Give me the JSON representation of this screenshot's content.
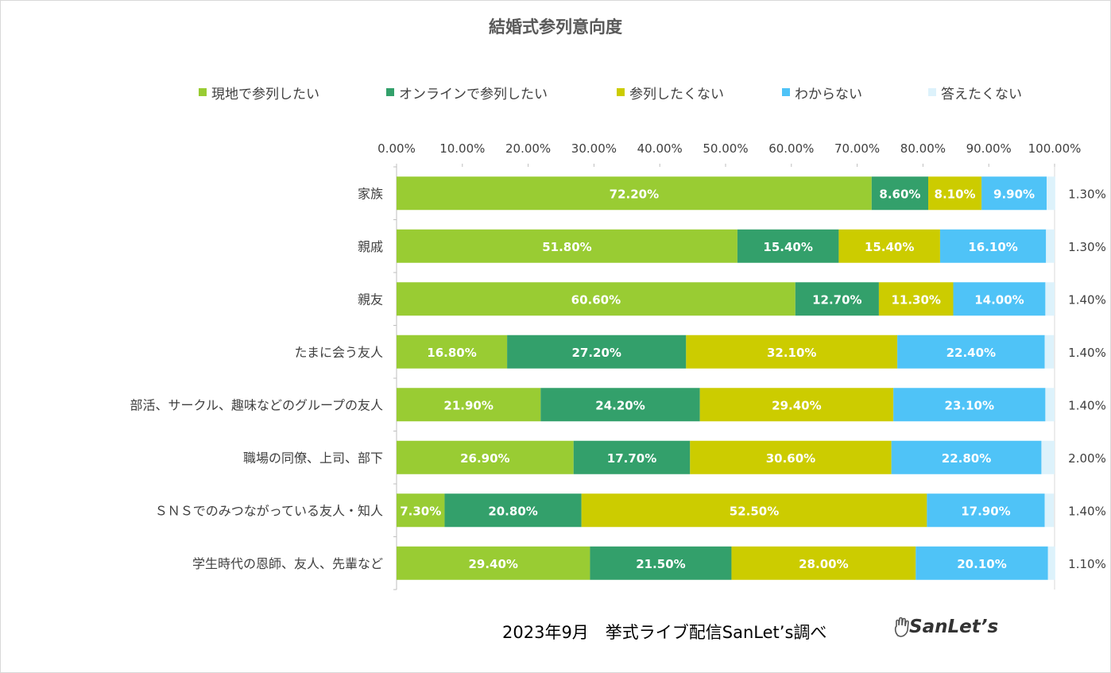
{
  "chart_data": {
    "type": "bar",
    "orientation": "horizontal",
    "stacked": true,
    "title": "結婚式参列意向度",
    "categories": [
      "家族",
      "親戚",
      "親友",
      "たまに会う友人",
      "部活、サークル、趣味などのグループの友人",
      "職場の同僚、上司、部下",
      "ＳＮＳでのみつながっている友人・知人",
      "学生時代の恩師、友人、先輩など"
    ],
    "series": [
      {
        "name": "現地で参列したい",
        "color": "#99CC33",
        "values": [
          72.2,
          51.8,
          60.6,
          16.8,
          21.9,
          26.9,
          7.3,
          29.4
        ],
        "labels": [
          "72.20%",
          "51.80%",
          "60.60%",
          "16.80%",
          "21.90%",
          "26.90%",
          "7.30%",
          "29.40%"
        ]
      },
      {
        "name": "オンラインで参列したい",
        "color": "#33A06B",
        "values": [
          8.6,
          15.4,
          12.7,
          27.2,
          24.2,
          17.7,
          20.8,
          21.5
        ],
        "labels": [
          "8.60%",
          "15.40%",
          "12.70%",
          "27.20%",
          "24.20%",
          "17.70%",
          "20.80%",
          "21.50%"
        ]
      },
      {
        "name": "参列したくない",
        "color": "#CCCC00",
        "values": [
          8.1,
          15.4,
          11.3,
          32.1,
          29.4,
          30.6,
          52.5,
          28.0
        ],
        "labels": [
          "8.10%",
          "15.40%",
          "11.30%",
          "32.10%",
          "29.40%",
          "30.60%",
          "52.50%",
          "28.00%"
        ]
      },
      {
        "name": "わからない",
        "color": "#4FC3F7",
        "values": [
          9.9,
          16.1,
          14.0,
          22.4,
          23.1,
          22.8,
          17.9,
          20.1
        ],
        "labels": [
          "9.90%",
          "16.10%",
          "14.00%",
          "22.40%",
          "23.10%",
          "22.80%",
          "17.90%",
          "20.10%"
        ]
      },
      {
        "name": "答えたくない",
        "color": "#DDF2FB",
        "values": [
          1.3,
          1.3,
          1.4,
          1.4,
          1.4,
          2.0,
          1.4,
          1.1
        ],
        "labels": [
          "1.30%",
          "1.30%",
          "1.40%",
          "1.40%",
          "1.40%",
          "2.00%",
          "1.40%",
          "1.10%"
        ]
      }
    ],
    "xlim": [
      0,
      100
    ],
    "xticks": [
      "0.00%",
      "10.00%",
      "20.00%",
      "30.00%",
      "40.00%",
      "50.00%",
      "60.00%",
      "70.00%",
      "80.00%",
      "90.00%",
      "100.00%"
    ],
    "legend_position": "top",
    "grid": false
  },
  "footer": {
    "source": "2023年9月　挙式ライブ配信SanLet’s調べ",
    "brand": "SanLet’s"
  }
}
